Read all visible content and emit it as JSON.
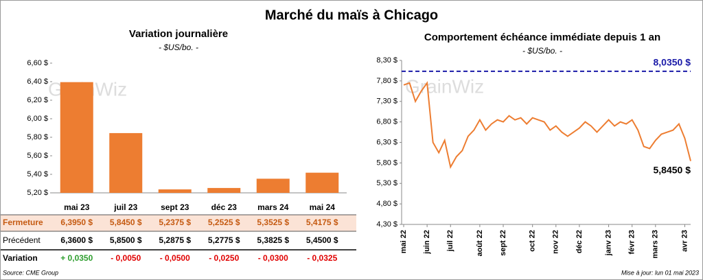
{
  "title": "Marché du maïs à Chicago",
  "source": "Source: CME Group",
  "updated": "Mise à jour: lun 01 mai 2023",
  "watermark": "GrainWiz",
  "chart_data": [
    {
      "type": "bar",
      "title": "Variation journalière",
      "subtitle": "- $US/bo. -",
      "categories": [
        "mai 23",
        "juil 23",
        "sept 23",
        "déc 23",
        "mars 24",
        "mai 24"
      ],
      "series": [
        {
          "name": "Fermeture",
          "color": "#ed7d31",
          "values": [
            6.395,
            5.845,
            5.2375,
            5.2525,
            5.3525,
            5.4175
          ],
          "value_labels": [
            "6,3950  $",
            "5,8450  $",
            "5,2375  $",
            "5,2525  $",
            "5,3525  $",
            "5,4175  $"
          ]
        }
      ],
      "ylim": [
        5.2,
        6.6
      ],
      "yticks": [
        {
          "value": 5.2,
          "label": "5,20 $"
        },
        {
          "value": 5.4,
          "label": "5,40 $"
        },
        {
          "value": 5.6,
          "label": "5,60 $"
        },
        {
          "value": 5.8,
          "label": "5,80 $"
        },
        {
          "value": 6.0,
          "label": "6,00 $"
        },
        {
          "value": 6.2,
          "label": "6,20 $"
        },
        {
          "value": 6.4,
          "label": "6,40 $"
        },
        {
          "value": 6.6,
          "label": "6,60 $"
        }
      ],
      "table": [
        {
          "name": "Précédent",
          "cells": [
            "6,3600  $",
            "5,8500  $",
            "5,2875  $",
            "5,2775  $",
            "5,3825  $",
            "5,4500  $"
          ],
          "colors": [
            "#000",
            "#000",
            "#000",
            "#000",
            "#000",
            "#000"
          ]
        },
        {
          "name": "Variation",
          "cells": [
            "+ 0,0350",
            "- 0,0050",
            "- 0,0500",
            "- 0,0250",
            "- 0,0300",
            "- 0,0325"
          ],
          "colors": [
            "#2e9e2e",
            "#e00000",
            "#e00000",
            "#e00000",
            "#e00000",
            "#e00000"
          ]
        }
      ]
    },
    {
      "type": "line",
      "title": "Comportement  échéance immédiate depuis 1 an",
      "subtitle": "- $US/bo. -",
      "categories": [
        "mai 22",
        null,
        null,
        null,
        "juin 22",
        null,
        null,
        null,
        "juil 22",
        null,
        null,
        null,
        null,
        "août 22",
        null,
        null,
        null,
        "sept 22",
        null,
        null,
        null,
        null,
        "oct 22",
        null,
        null,
        null,
        "nov 22",
        null,
        null,
        null,
        "déc 22",
        null,
        null,
        null,
        null,
        "janv 23",
        null,
        null,
        null,
        "févr 23",
        null,
        null,
        null,
        "mars 23",
        null,
        null,
        null,
        null,
        "avr 23",
        null
      ],
      "series": [
        {
          "name": "Échéance immédiate",
          "color": "#ed7d31",
          "values": [
            7.7,
            7.75,
            7.3,
            7.55,
            7.75,
            6.3,
            6.05,
            6.35,
            5.7,
            5.95,
            6.1,
            6.45,
            6.6,
            6.85,
            6.6,
            6.75,
            6.85,
            6.8,
            6.95,
            6.85,
            6.9,
            6.75,
            6.9,
            6.85,
            6.8,
            6.6,
            6.7,
            6.55,
            6.45,
            6.55,
            6.65,
            6.8,
            6.7,
            6.55,
            6.7,
            6.85,
            6.7,
            6.8,
            6.75,
            6.85,
            6.6,
            6.2,
            6.15,
            6.35,
            6.5,
            6.55,
            6.6,
            6.75,
            6.4,
            5.845
          ]
        }
      ],
      "last_label": "5,8450 $",
      "reference": {
        "value": 8.035,
        "label": "8,0350 $",
        "color": "#1a1aa8"
      },
      "ylim": [
        4.3,
        8.3
      ],
      "yticks": [
        {
          "value": 4.3,
          "label": "4,30 $"
        },
        {
          "value": 4.8,
          "label": "4,80 $"
        },
        {
          "value": 5.3,
          "label": "5,30 $"
        },
        {
          "value": 5.8,
          "label": "5,80 $"
        },
        {
          "value": 6.3,
          "label": "6,30 $"
        },
        {
          "value": 6.8,
          "label": "6,80 $"
        },
        {
          "value": 7.3,
          "label": "7,30 $"
        },
        {
          "value": 7.8,
          "label": "7,80 $"
        },
        {
          "value": 8.3,
          "label": "8,30 $"
        }
      ]
    }
  ]
}
